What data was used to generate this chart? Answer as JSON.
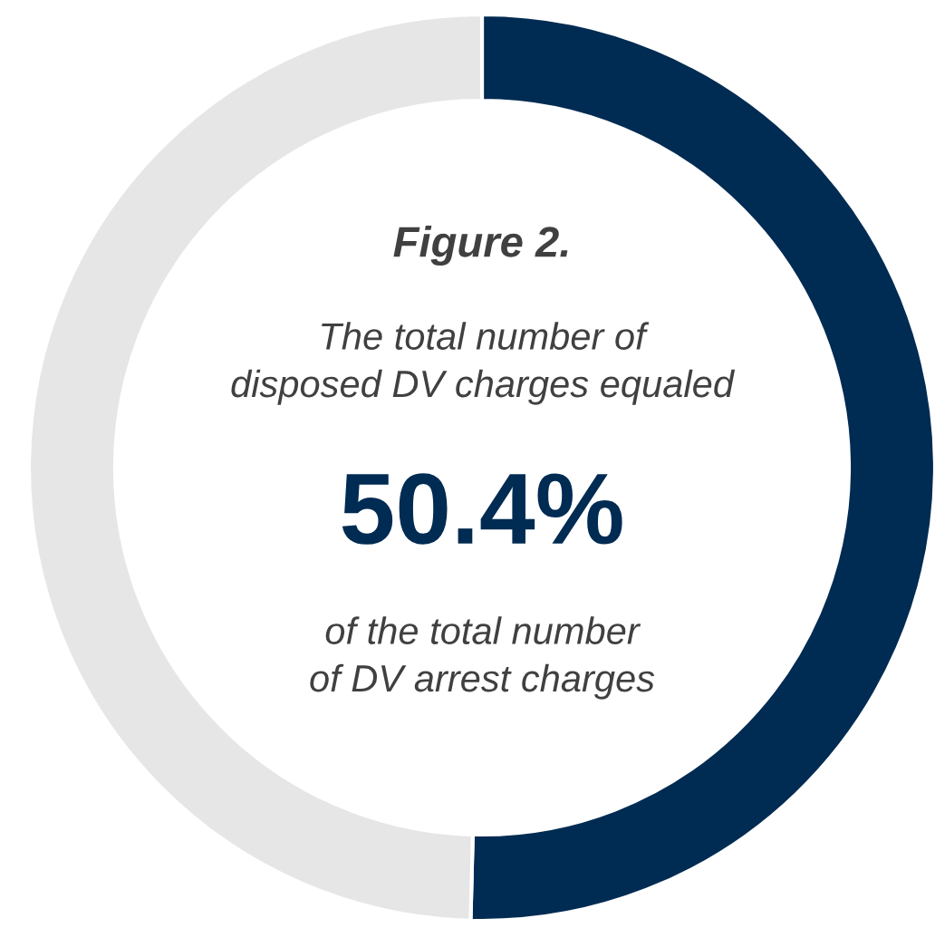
{
  "chart_data": {
    "type": "donut",
    "title": "Figure 2.",
    "subtitle": "The total number of\ndisposed DV charges equaled",
    "categories": [
      null,
      null
    ],
    "values": [
      50.4,
      49.6
    ],
    "colors": [
      "#002b52",
      "#e6e6e6"
    ],
    "value_labels": [
      "50.4%",
      null
    ],
    "annotations": [
      "of the total number\nof DV arrest charges"
    ]
  }
}
